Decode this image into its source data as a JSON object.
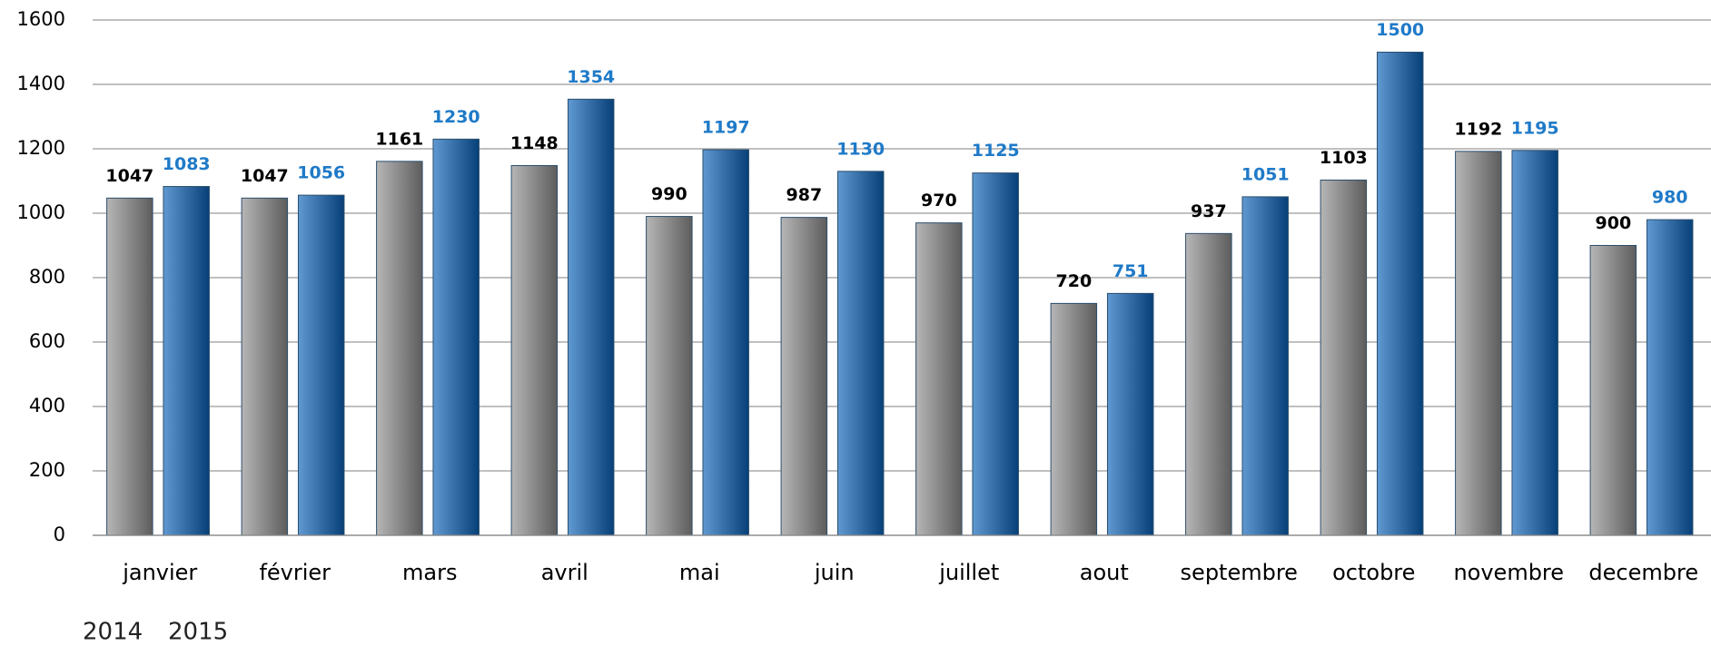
{
  "chart_data": {
    "type": "bar",
    "categories": [
      "janvier",
      "février",
      "mars",
      "avril",
      "mai",
      "juin",
      "juillet",
      "aout",
      "septembre",
      "octobre",
      "novembre",
      "decembre"
    ],
    "series": [
      {
        "name": "2014",
        "color": "#8f8f8f",
        "label_color": "#000000",
        "values": [
          1047,
          1047,
          1161,
          1148,
          990,
          987,
          970,
          720,
          937,
          1103,
          1192,
          900
        ]
      },
      {
        "name": "2015",
        "color": "#0a62b8",
        "label_color": "#1f7ac8",
        "values": [
          1083,
          1056,
          1230,
          1354,
          1197,
          1130,
          1125,
          751,
          1051,
          1500,
          1195,
          980
        ]
      }
    ],
    "ylim": [
      0,
      1600
    ],
    "yticks": [
      0,
      200,
      400,
      600,
      800,
      1000,
      1200,
      1400,
      1600
    ],
    "grid": true,
    "legend": "bottom-left"
  }
}
